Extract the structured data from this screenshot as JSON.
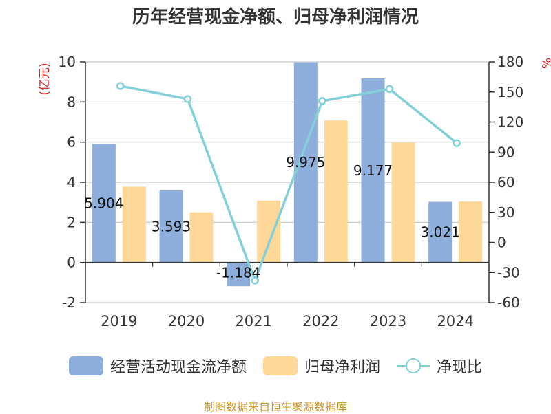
{
  "title": "历年经营现金净额、归母净利润情况",
  "source": "制图数据来自恒生聚源数据库",
  "chart_data": {
    "type": "bar",
    "categories": [
      "2019",
      "2020",
      "2021",
      "2022",
      "2023",
      "2024"
    ],
    "series": [
      {
        "name": "经营活动现金流净额",
        "kind": "bar",
        "axis": "left",
        "color": "#8eaedb",
        "values": [
          5.904,
          3.593,
          -1.184,
          9.975,
          9.177,
          3.021
        ],
        "labels": [
          "5.904",
          "3.593",
          "-1.184",
          "9.975",
          "9.177",
          "3.021"
        ]
      },
      {
        "name": "归母净利润",
        "kind": "bar",
        "axis": "left",
        "color": "#fdd898",
        "values": [
          3.78,
          2.5,
          3.08,
          7.08,
          5.98,
          3.04
        ]
      },
      {
        "name": "净现比",
        "kind": "line",
        "axis": "right",
        "color": "#83d0d8",
        "values": [
          156,
          143,
          -38,
          141,
          153,
          99
        ]
      }
    ],
    "y_left": {
      "label": "(亿元)",
      "min": -2,
      "max": 10,
      "ticks": [
        -2,
        0,
        2,
        4,
        6,
        8,
        10
      ]
    },
    "y_right": {
      "label": "%",
      "min": -60,
      "max": 180,
      "ticks": [
        -60,
        -30,
        0,
        30,
        60,
        90,
        120,
        150,
        180
      ]
    },
    "grid": true,
    "legend": "bottom"
  }
}
